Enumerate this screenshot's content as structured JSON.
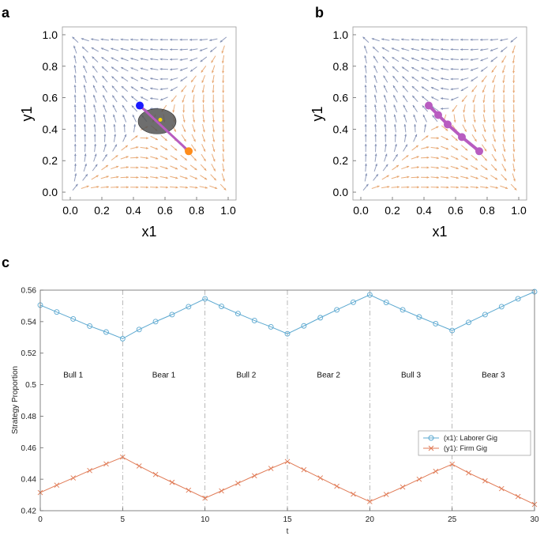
{
  "colors": {
    "blue_flow": "#7c8bb0",
    "orange_flow": "#e5a066",
    "laborer": "#5ba8d0",
    "firm": "#e07a55",
    "purple": "#b85cc0",
    "ellipse": "#555555",
    "start_blue": "#1a1aff",
    "end_orange": "#ff8c1a",
    "center_yellow": "#ffd700"
  },
  "chart_data": [
    {
      "panel": "a",
      "type": "scatter",
      "subtype": "stream-plot",
      "xlabel": "x1",
      "ylabel": "y1",
      "xlim": [
        -0.05,
        1.05
      ],
      "ylim": [
        -0.05,
        1.05
      ],
      "xticks": [
        "0.0",
        "0.2",
        "0.4",
        "0.6",
        "0.8",
        "1.0"
      ],
      "yticks": [
        "0.0",
        "0.2",
        "0.4",
        "0.6",
        "0.8",
        "1.0"
      ],
      "trajectory": {
        "x": [
          0.44,
          0.75
        ],
        "y": [
          0.55,
          0.26
        ]
      },
      "start_point": {
        "x": 0.44,
        "y": 0.55
      },
      "end_point": {
        "x": 0.75,
        "y": 0.26
      },
      "center_point": {
        "x": 0.57,
        "y": 0.46
      },
      "ellipse": {
        "cx": 0.55,
        "cy": 0.45,
        "rx": 0.12,
        "ry": 0.08
      }
    },
    {
      "panel": "b",
      "type": "scatter",
      "subtype": "stream-plot",
      "xlabel": "x1",
      "ylabel": "y1",
      "xlim": [
        -0.05,
        1.05
      ],
      "ylim": [
        -0.05,
        1.05
      ],
      "xticks": [
        "0.0",
        "0.2",
        "0.4",
        "0.6",
        "0.8",
        "1.0"
      ],
      "yticks": [
        "0.0",
        "0.2",
        "0.4",
        "0.6",
        "0.8",
        "1.0"
      ],
      "trajectory": {
        "x": [
          0.43,
          0.49,
          0.55,
          0.64,
          0.75
        ],
        "y": [
          0.55,
          0.49,
          0.43,
          0.35,
          0.26
        ]
      }
    },
    {
      "panel": "c",
      "type": "line",
      "xlabel": "t",
      "ylabel": "Strategy Proportion",
      "xlim": [
        0,
        30
      ],
      "ylim": [
        0.42,
        0.56
      ],
      "xticks": [
        "0",
        "5",
        "10",
        "15",
        "20",
        "25",
        "30"
      ],
      "yticks": [
        "0.42",
        "0.44",
        "0.46",
        "0.48",
        "0.5",
        "0.52",
        "0.54",
        "0.56"
      ],
      "phase_boundaries": [
        5,
        10,
        15,
        20,
        25
      ],
      "phases": [
        {
          "label": "Bull 1",
          "x": 2
        },
        {
          "label": "Bear 1",
          "x": 7.5
        },
        {
          "label": "Bull 2",
          "x": 12.5
        },
        {
          "label": "Bear 2",
          "x": 17.5
        },
        {
          "label": "Bull 3",
          "x": 22.5
        },
        {
          "label": "Bear 3",
          "x": 27.5
        }
      ],
      "x": [
        0,
        1,
        2,
        3,
        4,
        5,
        6,
        7,
        8,
        9,
        10,
        11,
        12,
        13,
        14,
        15,
        16,
        17,
        18,
        19,
        20,
        21,
        22,
        23,
        24,
        25,
        26,
        27,
        28,
        29,
        30
      ],
      "series": [
        {
          "name": "(x1): Laborer Gig",
          "marker": "circle",
          "values": [
            0.5505,
            0.5461,
            0.5417,
            0.5372,
            0.5334,
            0.5292,
            0.535,
            0.54,
            0.5445,
            0.5495,
            0.5545,
            0.5497,
            0.5451,
            0.5407,
            0.5367,
            0.5323,
            0.5373,
            0.5425,
            0.5475,
            0.5523,
            0.557,
            0.5522,
            0.5475,
            0.543,
            0.5387,
            0.5344,
            0.5395,
            0.5445,
            0.5495,
            0.5545,
            0.559
          ]
        },
        {
          "name": "(y1): Firm Gig",
          "marker": "x",
          "values": [
            0.4315,
            0.4362,
            0.4408,
            0.4455,
            0.4497,
            0.454,
            0.4484,
            0.443,
            0.438,
            0.433,
            0.428,
            0.4326,
            0.4374,
            0.4422,
            0.4468,
            0.4512,
            0.446,
            0.4408,
            0.4355,
            0.4305,
            0.4258,
            0.4303,
            0.435,
            0.44,
            0.445,
            0.4495,
            0.444,
            0.439,
            0.434,
            0.429,
            0.424
          ]
        }
      ],
      "legend": "center-right"
    }
  ]
}
